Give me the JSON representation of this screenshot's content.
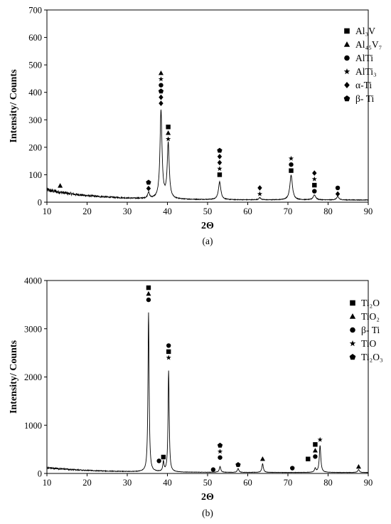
{
  "chart_data": [
    {
      "type": "line",
      "caption": "(a)",
      "xlabel": "2Θ",
      "ylabel": "Intensity/ Counts",
      "xlim": [
        10,
        90
      ],
      "ylim": [
        0,
        700
      ],
      "xticks": [
        10,
        20,
        30,
        40,
        50,
        60,
        70,
        80,
        90
      ],
      "yticks": [
        0,
        100,
        200,
        300,
        400,
        500,
        600,
        700
      ],
      "legend": {
        "position": "top-right",
        "items": [
          {
            "label": "Al₃V",
            "marker": "square"
          },
          {
            "label": "Al₄₅V₇",
            "marker": "triangle"
          },
          {
            "label": "AlTi",
            "marker": "circle"
          },
          {
            "label": "AlTi₃",
            "marker": "star"
          },
          {
            "label": "α-Ti",
            "marker": "diamond"
          },
          {
            "label": "β- Ti",
            "marker": "pentagon"
          }
        ]
      },
      "background": {
        "start": 45,
        "decay_to": 8,
        "noise": 7
      },
      "peaks": [
        {
          "x": 35.3,
          "y": 22,
          "w": 0.28
        },
        {
          "x": 38.4,
          "y": 320,
          "w": 0.3
        },
        {
          "x": 40.2,
          "y": 200,
          "w": 0.3
        },
        {
          "x": 53.0,
          "y": 65,
          "w": 0.35
        },
        {
          "x": 63.0,
          "y": 8,
          "w": 0.3
        },
        {
          "x": 70.8,
          "y": 90,
          "w": 0.38
        },
        {
          "x": 76.6,
          "y": 18,
          "w": 0.38
        },
        {
          "x": 82.4,
          "y": 12,
          "w": 0.35
        }
      ],
      "annotations": [
        {
          "x": 13.3,
          "y": 60,
          "markers": [
            "triangle"
          ]
        },
        {
          "x": 35.3,
          "y": 50,
          "markers": [
            "diamond",
            "pentagon"
          ]
        },
        {
          "x": 38.4,
          "y": 360,
          "markers": [
            "diamond",
            "diamond",
            "pentagon",
            "circle",
            "star",
            "triangle"
          ]
        },
        {
          "x": 40.2,
          "y": 230,
          "markers": [
            "star",
            "triangle",
            "square"
          ]
        },
        {
          "x": 53.0,
          "y": 100,
          "markers": [
            "square",
            "star",
            "diamond",
            "diamond",
            "pentagon"
          ]
        },
        {
          "x": 63.0,
          "y": 30,
          "markers": [
            "star",
            "diamond"
          ]
        },
        {
          "x": 70.8,
          "y": 115,
          "markers": [
            "square",
            "circle",
            "star"
          ]
        },
        {
          "x": 76.6,
          "y": 40,
          "markers": [
            "circle",
            "square",
            "star",
            "diamond"
          ]
        },
        {
          "x": 82.4,
          "y": 30,
          "markers": [
            "diamond",
            "circle"
          ]
        }
      ]
    },
    {
      "type": "line",
      "caption": "(b)",
      "xlabel": "2Θ",
      "ylabel": "Intensity/ Counts",
      "xlim": [
        10,
        90
      ],
      "ylim": [
        0,
        4000
      ],
      "xticks": [
        10,
        20,
        30,
        40,
        50,
        60,
        70,
        80,
        90
      ],
      "yticks": [
        0,
        1000,
        2000,
        3000,
        4000
      ],
      "legend": {
        "position": "top-right",
        "items": [
          {
            "label": "Ti₂O",
            "marker": "square"
          },
          {
            "label": "TiO₂",
            "marker": "triangle"
          },
          {
            "label": "β- Ti",
            "marker": "circle"
          },
          {
            "label": "TiO",
            "marker": "star"
          },
          {
            "label": "Ti₂O₃",
            "marker": "pentagon"
          }
        ]
      },
      "background": {
        "start": 120,
        "decay_to": 20,
        "noise": 18
      },
      "peaks": [
        {
          "x": 35.3,
          "y": 3300,
          "w": 0.17
        },
        {
          "x": 39.0,
          "y": 200,
          "w": 0.18
        },
        {
          "x": 40.3,
          "y": 2100,
          "w": 0.17
        },
        {
          "x": 53.1,
          "y": 120,
          "w": 0.22
        },
        {
          "x": 57.6,
          "y": 80,
          "w": 0.22
        },
        {
          "x": 63.7,
          "y": 180,
          "w": 0.22
        },
        {
          "x": 76.8,
          "y": 80,
          "w": 0.22
        },
        {
          "x": 78.0,
          "y": 560,
          "w": 0.22
        },
        {
          "x": 87.6,
          "y": 60,
          "w": 0.25
        }
      ],
      "annotations": [
        {
          "x": 35.3,
          "y": 3600,
          "markers": [
            "circle",
            "triangle",
            "square"
          ]
        },
        {
          "x": 37.9,
          "y": 260,
          "markers": [
            "circle"
          ]
        },
        {
          "x": 39.0,
          "y": 340,
          "markers": [
            "square"
          ]
        },
        {
          "x": 40.3,
          "y": 2400,
          "markers": [
            "star",
            "square",
            "circle"
          ]
        },
        {
          "x": 51.4,
          "y": 80,
          "markers": [
            "circle"
          ]
        },
        {
          "x": 53.1,
          "y": 330,
          "markers": [
            "circle",
            "star",
            "pentagon"
          ]
        },
        {
          "x": 57.6,
          "y": 180,
          "markers": [
            "pentagon"
          ]
        },
        {
          "x": 63.7,
          "y": 300,
          "markers": [
            "triangle"
          ]
        },
        {
          "x": 71.1,
          "y": 110,
          "markers": [
            "circle"
          ]
        },
        {
          "x": 75.0,
          "y": 300,
          "markers": [
            "square"
          ]
        },
        {
          "x": 76.8,
          "y": 350,
          "markers": [
            "circle",
            "triangle",
            "square"
          ]
        },
        {
          "x": 78.0,
          "y": 700,
          "markers": [
            "star"
          ]
        },
        {
          "x": 87.6,
          "y": 140,
          "markers": [
            "triangle"
          ]
        }
      ]
    }
  ]
}
